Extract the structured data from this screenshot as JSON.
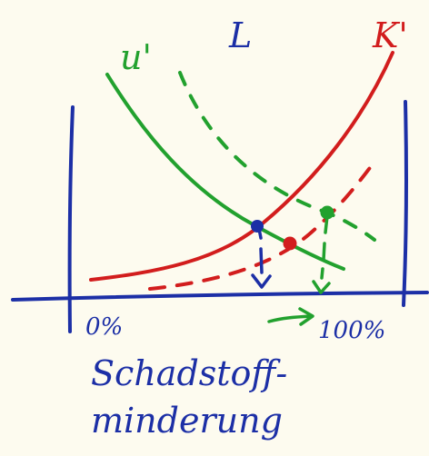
{
  "labels": {
    "marginal_benefit": "u'",
    "regulation_symbol": "L",
    "marginal_cost": "K'",
    "x_axis_start": "0%",
    "x_axis_end": "100%",
    "x_axis_title_line1": "Schadstoff-",
    "x_axis_title_line2": "minderung"
  },
  "colors": {
    "background": "#fdfbef",
    "axis": "#1c2fa6",
    "marginal_cost_curve": "#d21d1d",
    "marginal_benefit_curve": "#22a12e",
    "equilibrium_point": "#1c2fa6",
    "shifted_cost_point": "#d21d1d",
    "shifted_benefit_point": "#22a12e"
  }
}
